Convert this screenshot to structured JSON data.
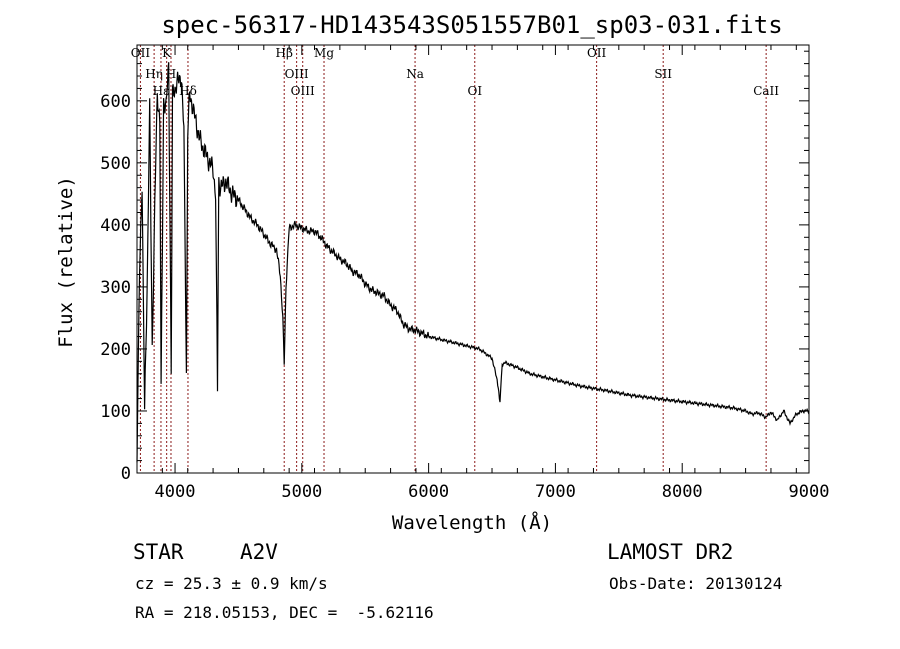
{
  "chart_data": {
    "type": "line",
    "title": "spec-56317-HD143543S051557B01_sp03-031.fits",
    "xlabel": "Wavelength (Å)",
    "ylabel": "Flux (relative)",
    "xlim": [
      3700,
      9000
    ],
    "ylim": [
      0,
      690
    ],
    "xticks": [
      4000,
      5000,
      6000,
      7000,
      8000,
      9000
    ],
    "yticks": [
      0,
      100,
      200,
      300,
      400,
      500,
      600
    ],
    "series": [
      {
        "name": "flux",
        "x": [
          3700,
          3720,
          3740,
          3760,
          3780,
          3800,
          3820,
          3840,
          3860,
          3880,
          3890,
          3910,
          3930,
          3950,
          3970,
          3980,
          4000,
          4020,
          4050,
          4070,
          4090,
          4100,
          4115,
          4140,
          4170,
          4200,
          4250,
          4300,
          4320,
          4335,
          4345,
          4360,
          4400,
          4450,
          4500,
          4550,
          4600,
          4650,
          4700,
          4750,
          4800,
          4830,
          4850,
          4861,
          4875,
          4900,
          4950,
          5000,
          5050,
          5100,
          5150,
          5200,
          5250,
          5300,
          5350,
          5400,
          5450,
          5500,
          5550,
          5600,
          5650,
          5700,
          5750,
          5800,
          5850,
          5900,
          5950,
          6000,
          6100,
          6200,
          6300,
          6400,
          6500,
          6540,
          6563,
          6580,
          6600,
          6700,
          6800,
          6900,
          7000,
          7200,
          7400,
          7600,
          7800,
          8000,
          8200,
          8400,
          8500,
          8550,
          8600,
          8660,
          8700,
          8750,
          8800,
          8850,
          8900,
          8950,
          9000
        ],
        "y": [
          30,
          320,
          470,
          100,
          300,
          590,
          200,
          430,
          610,
          570,
          130,
          600,
          590,
          660,
          160,
          610,
          620,
          630,
          640,
          550,
          160,
          550,
          610,
          590,
          560,
          535,
          510,
          490,
          450,
          135,
          470,
          460,
          470,
          450,
          440,
          425,
          410,
          400,
          385,
          370,
          360,
          320,
          250,
          175,
          300,
          395,
          400,
          395,
          390,
          390,
          380,
          365,
          355,
          345,
          338,
          325,
          320,
          305,
          295,
          290,
          285,
          270,
          262,
          240,
          232,
          230,
          225,
          220,
          215,
          210,
          205,
          200,
          185,
          150,
          115,
          175,
          178,
          170,
          160,
          155,
          150,
          140,
          133,
          125,
          120,
          115,
          110,
          105,
          100,
          95,
          97,
          90,
          98,
          85,
          100,
          80,
          95,
          100,
          100
        ]
      }
    ],
    "lines": [
      {
        "label": "OII",
        "x": 3727
      },
      {
        "label": "Hη",
        "x": 3835
      },
      {
        "label": "Hε",
        "x": 3889
      },
      {
        "label": "K",
        "x": 3934
      },
      {
        "label": "H",
        "x": 3968
      },
      {
        "label": "Hδ",
        "x": 4102
      },
      {
        "label": "Hβ",
        "x": 4861
      },
      {
        "label": "OIII",
        "x": 4959
      },
      {
        "label": "OIII",
        "x": 5007
      },
      {
        "label": "Mg",
        "x": 5175
      },
      {
        "label": "Na",
        "x": 5893
      },
      {
        "label": "OI",
        "x": 6364
      },
      {
        "label": "OII",
        "x": 7325
      },
      {
        "label": "SII",
        "x": 7850
      },
      {
        "label": "CaII",
        "x": 8662
      }
    ]
  },
  "info": {
    "object_class": "STAR",
    "subclass": "A2V",
    "survey": "LAMOST DR2",
    "cz": "cz = 25.3 ± 0.9 km/s",
    "obs_date": "Obs-Date: 20130124",
    "coords": "RA = 218.05153, DEC =  -5.62116"
  }
}
